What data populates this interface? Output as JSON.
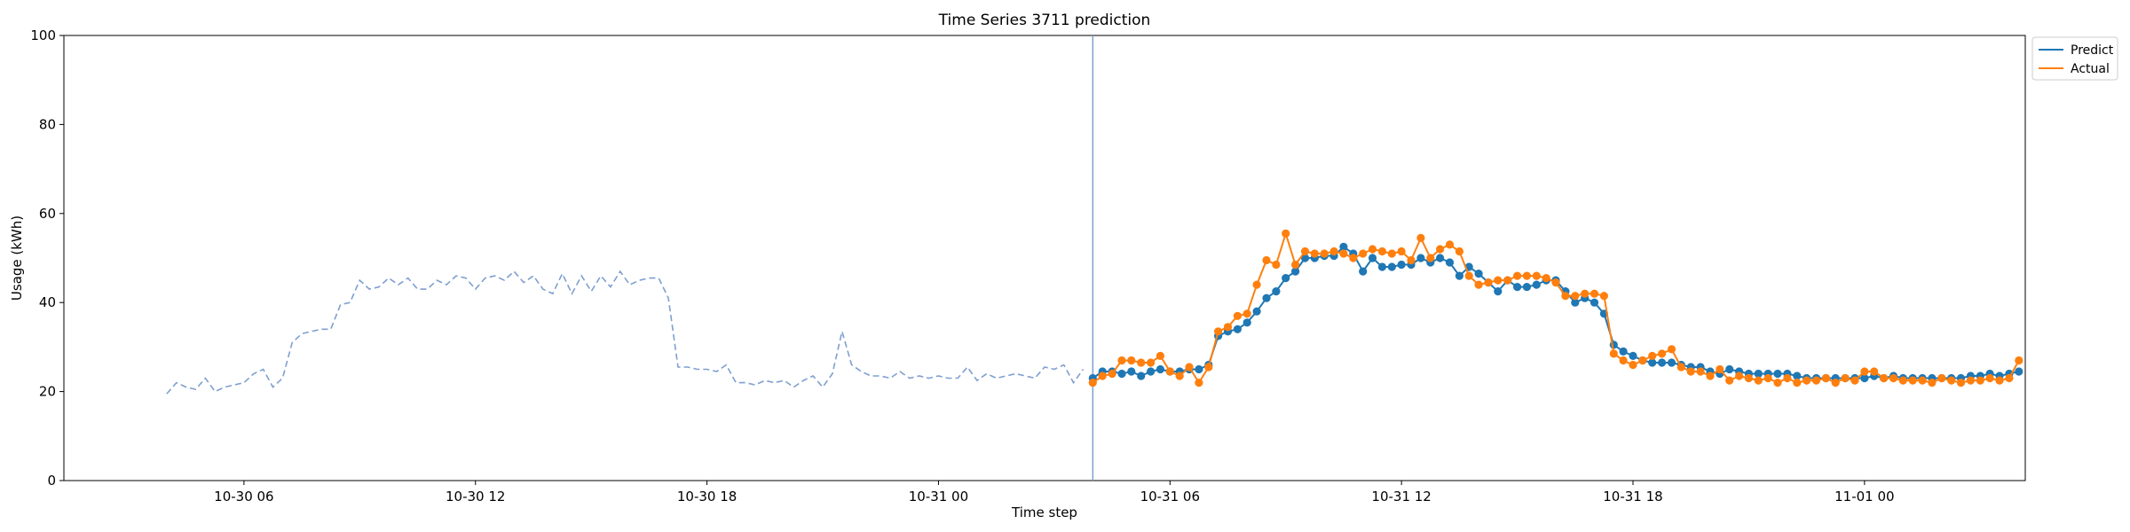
{
  "chart_data": {
    "type": "line",
    "title": "Time Series 3711 prediction",
    "xlabel": "Time step",
    "ylabel": "Usage (kWh)",
    "ylim": [
      0,
      100
    ],
    "xlim": [
      "10-30 01:20",
      "11-01 04:10"
    ],
    "x_ticks": [
      "10-30 06",
      "10-30 12",
      "10-30 18",
      "10-31 00",
      "10-31 06",
      "10-31 12",
      "10-31 18",
      "11-01 00"
    ],
    "y_ticks": [
      0,
      20,
      40,
      60,
      80,
      100
    ],
    "grid": false,
    "legend": {
      "placement": "outside-top-right"
    },
    "forecast_start": "10-31 04:00",
    "colors": {
      "history": "#7f9fd0",
      "predict": "#1f77b4",
      "actual": "#ff7f0e",
      "divider": "#7f9fd0"
    },
    "history": {
      "start": "10-30 04:00",
      "step_minutes": 15,
      "values": [
        19.5,
        22,
        21,
        20.5,
        23,
        20,
        21,
        21.5,
        22,
        24,
        25,
        21,
        23,
        31,
        33,
        33.5,
        34,
        34,
        39.5,
        40,
        45,
        43,
        43.5,
        45.5,
        44,
        45.5,
        43,
        43,
        45,
        44,
        46,
        45.5,
        43,
        45.5,
        46,
        45,
        47,
        44.5,
        46,
        43,
        42,
        46.5,
        42,
        46,
        42.5,
        46,
        43.5,
        47,
        44,
        45,
        45.5,
        45.5,
        41,
        25.5,
        25.5,
        25,
        25,
        24.5,
        26,
        22,
        22,
        21.5,
        22.5,
        22,
        22.5,
        21,
        22.5,
        23.5,
        21,
        24,
        33.5,
        26,
        24.5,
        23.5,
        23.5,
        23,
        24.5,
        23,
        23.5,
        23,
        23.5,
        23,
        23,
        25.5,
        22.5,
        24,
        23,
        23.5,
        24,
        23.5,
        23,
        25.5,
        25,
        26,
        22,
        25
      ]
    },
    "series": [
      {
        "name": "Predict",
        "start": "10-31 04:00",
        "step_minutes": 15,
        "values": [
          23,
          24.5,
          24.5,
          24,
          24.5,
          23.5,
          24.5,
          25,
          24.5,
          24.5,
          25,
          25,
          26,
          32.5,
          33.5,
          34,
          35.5,
          38,
          41,
          42.5,
          45.5,
          47,
          50,
          50,
          50.5,
          50.5,
          52.5,
          51,
          47,
          50,
          48,
          48,
          48.5,
          48.5,
          50,
          49,
          50,
          49,
          46,
          48,
          46.5,
          44.5,
          42.5,
          45,
          43.5,
          43.5,
          44,
          45,
          45,
          42.5,
          40,
          41,
          40,
          37.5,
          30.5,
          29,
          28,
          27,
          26.5,
          26.5,
          26.5,
          26,
          25.5,
          25.5,
          24.5,
          24,
          25,
          24.5,
          24,
          24,
          24,
          24,
          24,
          23.5,
          23,
          23,
          23,
          23,
          23,
          23,
          23,
          23.5,
          23,
          23.5,
          23,
          23,
          23,
          23,
          23,
          23,
          23,
          23.5,
          23.5,
          24,
          23.5,
          24,
          24.5
        ]
      },
      {
        "name": "Actual",
        "start": "10-31 04:00",
        "step_minutes": 15,
        "values": [
          22,
          23.5,
          24,
          27,
          27,
          26.5,
          26.5,
          28,
          24.5,
          23.5,
          25.5,
          22,
          25.5,
          33.5,
          34.5,
          37,
          37.5,
          44,
          49.5,
          48.5,
          55.5,
          48.5,
          51.5,
          51,
          51,
          51.5,
          51,
          50,
          51,
          52,
          51.5,
          51,
          51.5,
          49.5,
          54.5,
          50,
          52,
          53,
          51.5,
          46,
          44,
          44.5,
          45,
          45,
          46,
          46,
          46,
          45.5,
          44.5,
          41.5,
          41.5,
          42,
          42,
          41.5,
          28.5,
          27,
          26,
          27,
          28,
          28.5,
          29.5,
          25.5,
          24.5,
          24.5,
          23.5,
          25,
          22.5,
          23.5,
          23,
          22.5,
          23,
          22,
          23,
          22,
          22.5,
          22.5,
          23,
          22,
          23,
          22.5,
          24.5,
          24.5,
          23,
          23,
          22.5,
          22.5,
          22.5,
          22,
          23,
          22.5,
          22,
          22.5,
          22.5,
          23,
          22.5,
          23,
          27
        ]
      }
    ]
  }
}
